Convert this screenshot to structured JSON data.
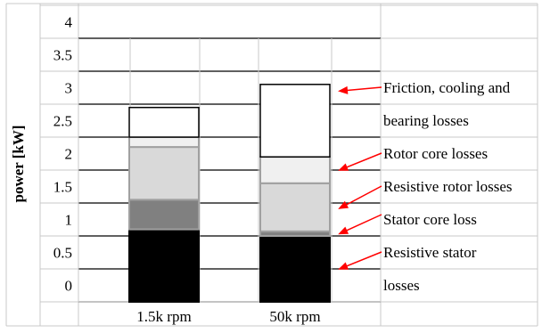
{
  "chart_data": {
    "type": "bar",
    "stacked": true,
    "categories": [
      "1.5k rpm",
      "50k rpm"
    ],
    "ylabel": "power [kW]",
    "ylim": [
      0,
      4
    ],
    "y_tick_labels": [
      "4",
      "3.5",
      "3",
      "2.5",
      "2",
      "1.5",
      "1",
      "0.5",
      "0"
    ],
    "grid": true,
    "series": [
      {
        "name": "Resistive stator losses",
        "color": "#000000",
        "values": [
          1.1,
          1.0
        ]
      },
      {
        "name": "Stator core loss",
        "color": "#808080",
        "values": [
          0.45,
          0.07
        ]
      },
      {
        "name": "Resistive rotor losses",
        "color": "#d9d9d9",
        "values": [
          0.8,
          0.73
        ]
      },
      {
        "name": "Rotor core losses",
        "color": "#f0f0f0",
        "values": [
          0.15,
          0.4
        ]
      },
      {
        "name": "Friction, cooling and bearing losses",
        "color": "#ffffff",
        "values": [
          0.45,
          1.1
        ]
      }
    ],
    "annotations": [
      {
        "lines": [
          "Friction, cooling and",
          "bearing losses"
        ],
        "series": 4
      },
      {
        "lines": [
          "Rotor core losses"
        ],
        "series": 3
      },
      {
        "lines": [
          "Resistive rotor losses"
        ],
        "series": 2
      },
      {
        "lines": [
          "Stator core loss"
        ],
        "series": 1
      },
      {
        "lines": [
          "Resistive stator",
          "losses"
        ],
        "series": 0
      }
    ]
  }
}
